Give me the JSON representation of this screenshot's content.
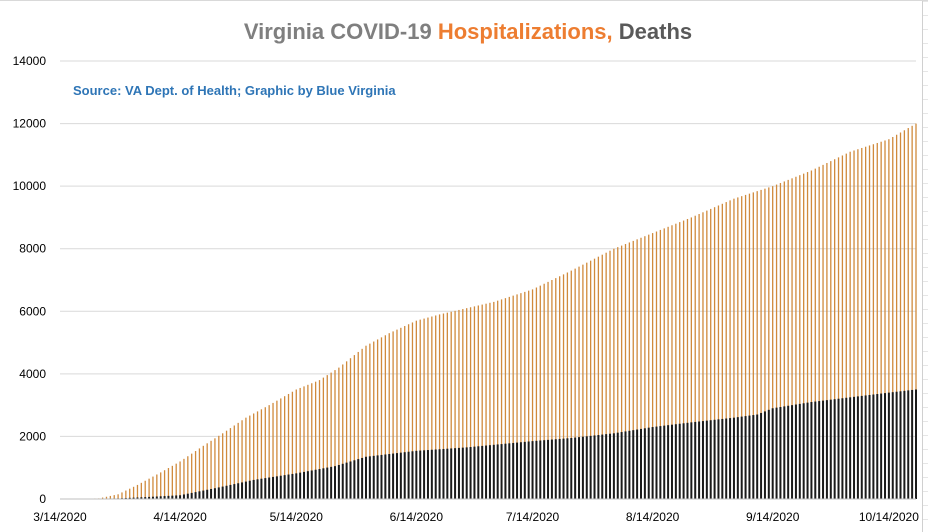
{
  "chart_data": {
    "type": "bar",
    "title_parts": [
      {
        "text": "Virginia COVID-19 ",
        "color": "#7f7f7f"
      },
      {
        "text": "Hospitalizations,",
        "color": "#ed7d31"
      },
      {
        "text": " Deaths",
        "color": "#595959"
      }
    ],
    "subtitle": "Source: VA Dept. of Health; Graphic by Blue Virginia",
    "xlabel": "",
    "ylabel": "",
    "ylim": [
      0,
      14000
    ],
    "yticks": [
      0,
      2000,
      4000,
      6000,
      8000,
      10000,
      12000,
      14000
    ],
    "x_start": "2020-03-14",
    "x_end": "2020-10-21",
    "xtick_labels": [
      "3/14/2020",
      "4/14/2020",
      "5/14/2020",
      "6/14/2020",
      "7/14/2020",
      "8/14/2020",
      "9/14/2020",
      "10/14/2020"
    ],
    "grid": true,
    "legend": "none",
    "series": [
      {
        "name": "Hospitalizations",
        "color": "#d08a3c",
        "points": [
          {
            "date": "2020-03-14",
            "value": 0
          },
          {
            "date": "2020-03-24",
            "value": 20
          },
          {
            "date": "2020-03-29",
            "value": 150
          },
          {
            "date": "2020-04-03",
            "value": 450
          },
          {
            "date": "2020-04-09",
            "value": 850
          },
          {
            "date": "2020-04-14",
            "value": 1200
          },
          {
            "date": "2020-04-20",
            "value": 1700
          },
          {
            "date": "2020-04-25",
            "value": 2100
          },
          {
            "date": "2020-05-01",
            "value": 2600
          },
          {
            "date": "2020-05-07",
            "value": 3000
          },
          {
            "date": "2020-05-14",
            "value": 3500
          },
          {
            "date": "2020-05-20",
            "value": 3800
          },
          {
            "date": "2020-05-25",
            "value": 4200
          },
          {
            "date": "2020-06-01",
            "value": 4900
          },
          {
            "date": "2020-06-07",
            "value": 5300
          },
          {
            "date": "2020-06-14",
            "value": 5700
          },
          {
            "date": "2020-06-20",
            "value": 5900
          },
          {
            "date": "2020-06-27",
            "value": 6100
          },
          {
            "date": "2020-07-04",
            "value": 6300
          },
          {
            "date": "2020-07-14",
            "value": 6700
          },
          {
            "date": "2020-07-24",
            "value": 7300
          },
          {
            "date": "2020-08-04",
            "value": 8000
          },
          {
            "date": "2020-08-14",
            "value": 8500
          },
          {
            "date": "2020-08-24",
            "value": 9000
          },
          {
            "date": "2020-09-04",
            "value": 9600
          },
          {
            "date": "2020-09-14",
            "value": 10000
          },
          {
            "date": "2020-09-24",
            "value": 10500
          },
          {
            "date": "2020-10-04",
            "value": 11100
          },
          {
            "date": "2020-10-14",
            "value": 11500
          },
          {
            "date": "2020-10-21",
            "value": 12000
          }
        ]
      },
      {
        "name": "Deaths",
        "color": "#1a1a1a",
        "points": [
          {
            "date": "2020-03-14",
            "value": 0
          },
          {
            "date": "2020-03-29",
            "value": 20
          },
          {
            "date": "2020-04-05",
            "value": 60
          },
          {
            "date": "2020-04-14",
            "value": 120
          },
          {
            "date": "2020-04-24",
            "value": 370
          },
          {
            "date": "2020-05-03",
            "value": 610
          },
          {
            "date": "2020-05-14",
            "value": 820
          },
          {
            "date": "2020-05-24",
            "value": 1050
          },
          {
            "date": "2020-06-01",
            "value": 1350
          },
          {
            "date": "2020-06-14",
            "value": 1540
          },
          {
            "date": "2020-06-27",
            "value": 1650
          },
          {
            "date": "2020-07-14",
            "value": 1850
          },
          {
            "date": "2020-07-24",
            "value": 1950
          },
          {
            "date": "2020-08-04",
            "value": 2100
          },
          {
            "date": "2020-08-14",
            "value": 2300
          },
          {
            "date": "2020-08-24",
            "value": 2450
          },
          {
            "date": "2020-09-04",
            "value": 2600
          },
          {
            "date": "2020-09-10",
            "value": 2700
          },
          {
            "date": "2020-09-14",
            "value": 2900
          },
          {
            "date": "2020-09-24",
            "value": 3100
          },
          {
            "date": "2020-10-04",
            "value": 3250
          },
          {
            "date": "2020-10-14",
            "value": 3400
          },
          {
            "date": "2020-10-21",
            "value": 3500
          }
        ]
      }
    ]
  }
}
